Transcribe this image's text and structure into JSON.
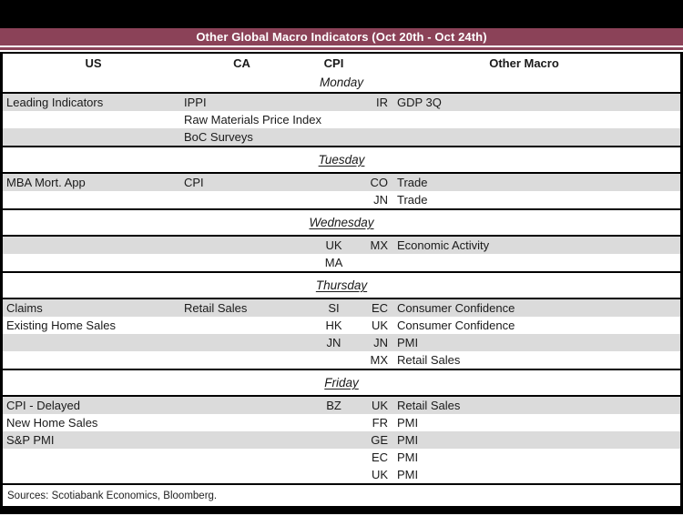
{
  "title": "Other Global Macro Indicators (Oct 20th - Oct 24th)",
  "columns": {
    "us": "US",
    "ca": "CA",
    "cpi": "CPI",
    "other": "Other Macro"
  },
  "days": [
    {
      "name": "Monday",
      "underline": false,
      "rows": [
        {
          "us": "Leading Indicators",
          "ca": "IPPI",
          "cpi": "",
          "code": "IR",
          "other": "GDP 3Q",
          "shaded": true
        },
        {
          "us": "",
          "ca": "Raw Materials Price Index",
          "cpi": "",
          "code": "",
          "other": "",
          "shaded": false
        },
        {
          "us": "",
          "ca": "BoC Surveys",
          "cpi": "",
          "code": "",
          "other": "",
          "shaded": true
        }
      ]
    },
    {
      "name": "Tuesday",
      "underline": true,
      "rows": [
        {
          "us": "MBA Mort. App",
          "ca": "CPI",
          "cpi": "",
          "code": "CO",
          "other": "Trade",
          "shaded": true
        },
        {
          "us": "",
          "ca": "",
          "cpi": "",
          "code": "JN",
          "other": "Trade",
          "shaded": false
        }
      ]
    },
    {
      "name": "Wednesday",
      "underline": true,
      "rows": [
        {
          "us": "",
          "ca": "",
          "cpi": "UK",
          "code": "MX",
          "other": "Economic Activity",
          "shaded": true
        },
        {
          "us": "",
          "ca": "",
          "cpi": "MA",
          "code": "",
          "other": "",
          "shaded": false
        }
      ]
    },
    {
      "name": "Thursday",
      "underline": true,
      "rows": [
        {
          "us": "Claims",
          "ca": "Retail Sales",
          "cpi": "SI",
          "code": "EC",
          "other": "Consumer Confidence",
          "shaded": true
        },
        {
          "us": "Existing Home Sales",
          "ca": "",
          "cpi": "HK",
          "code": "UK",
          "other": "Consumer Confidence",
          "shaded": false
        },
        {
          "us": "",
          "ca": "",
          "cpi": "JN",
          "code": "JN",
          "other": "PMI",
          "shaded": true
        },
        {
          "us": "",
          "ca": "",
          "cpi": "",
          "code": "MX",
          "other": "Retail Sales",
          "shaded": false
        }
      ]
    },
    {
      "name": "Friday",
      "underline": true,
      "rows": [
        {
          "us": "CPI - Delayed",
          "ca": "",
          "cpi": "BZ",
          "code": "UK",
          "other": "Retail Sales",
          "shaded": true
        },
        {
          "us": "New Home Sales",
          "ca": "",
          "cpi": "",
          "code": "FR",
          "other": "PMI",
          "shaded": false
        },
        {
          "us": "S&P PMI",
          "ca": "",
          "cpi": "",
          "code": "GE",
          "other": "PMI",
          "shaded": true
        },
        {
          "us": "",
          "ca": "",
          "cpi": "",
          "code": "EC",
          "other": "PMI",
          "shaded": false
        },
        {
          "us": "",
          "ca": "",
          "cpi": "",
          "code": "UK",
          "other": "PMI",
          "shaded": false
        }
      ]
    }
  ],
  "sources": "Sources: Scotiabank Economics, Bloomberg.",
  "colors": {
    "maroon": "#8B4258",
    "row_shade": "#DBDBDB",
    "frame": "#000000",
    "text": "#1A1A1A"
  }
}
